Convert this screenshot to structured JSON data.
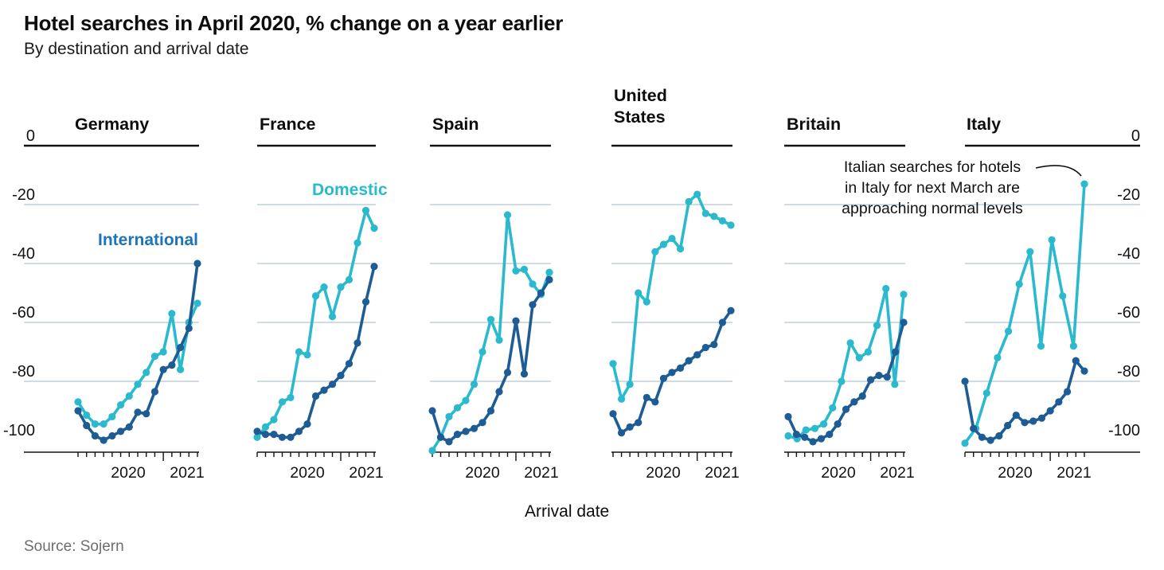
{
  "chart_data": {
    "type": "line",
    "title": "Hotel searches in April 2020, % change on a year earlier",
    "subtitle": "By destination and arrival date",
    "xlabel": "Arrival date",
    "source": "Source: Sojern",
    "legend_position": "inline-labels",
    "grid": "horizontal-only",
    "y_axis": {
      "tick_labels": [
        "0",
        "-20",
        "-40",
        "-60",
        "-80",
        "-100"
      ],
      "tick_values": [
        0,
        -20,
        -40,
        -60,
        -80,
        -100
      ],
      "ylim": [
        -104,
        0
      ],
      "shown_on": "left-and-right"
    },
    "x_axis": {
      "year_labels": [
        "2020",
        "2021"
      ],
      "note": "monthly arrival-date ticks from mid-2020 into 2021"
    },
    "series_labels": {
      "domestic": "Domestic",
      "international": "International"
    },
    "colors": {
      "domestic": "#2bbacd",
      "international": "#1d5c94",
      "international_label": "#1f74b8",
      "gridline": "#c0cfd8",
      "axis": "#121212"
    },
    "annotation": {
      "lines": [
        "Italian searches for hotels",
        "in Italy for next March are",
        "approaching normal levels"
      ],
      "points_to": "final Italy domestic value"
    },
    "panels": [
      {
        "name": "Germany",
        "domestic": [
          -87,
          -91.5,
          -94.5,
          -94.5,
          -92,
          -88,
          -85,
          -81,
          -77,
          -71.5,
          -70,
          -57,
          -76,
          -60,
          -53.5
        ],
        "international": [
          -90,
          -95,
          -98.5,
          -100,
          -98.5,
          -97,
          -95.5,
          -90.5,
          -91,
          -83.5,
          -76,
          -74.5,
          -68.5,
          -62,
          -40
        ]
      },
      {
        "name": "France",
        "domestic": [
          -99,
          -95.5,
          -93,
          -87,
          -85.5,
          -70,
          -71,
          -51,
          -48,
          -58,
          -48,
          -45.5,
          -33,
          -22,
          -28
        ],
        "international": [
          -97,
          -98,
          -98,
          -99,
          -99,
          -97,
          -94.5,
          -85,
          -83,
          -81,
          -78,
          -74,
          -67,
          -53,
          -41
        ]
      },
      {
        "name": "Spain",
        "domestic": [
          -103.5,
          -99,
          -92,
          -89,
          -86.5,
          -81,
          -70,
          -59,
          -66,
          -23.5,
          -42.5,
          -42,
          -47,
          -50.5,
          -43
        ],
        "international": [
          -90,
          -99,
          -100.5,
          -98,
          -97,
          -96,
          -94,
          -90,
          -83.5,
          -77,
          -59.5,
          -77.5,
          -54,
          -50,
          -45.5
        ]
      },
      {
        "name": "United States",
        "domestic": [
          -74,
          -86,
          -81,
          -50,
          -53,
          -36,
          -33.5,
          -31.5,
          -35,
          -19,
          -16.5,
          -23,
          -24,
          -25.5,
          -27
        ],
        "international": [
          -91,
          -97.5,
          -95.5,
          -94,
          -85.5,
          -87,
          -79,
          -77,
          -75.5,
          -73,
          -71,
          -68.5,
          -67.5,
          -60,
          -56
        ]
      },
      {
        "name": "Britain",
        "domestic": [
          -98.5,
          -99.5,
          -96.5,
          -96,
          -94.5,
          -89,
          -80,
          -67,
          -72,
          -70,
          -61,
          -48.5,
          -81,
          -50.5
        ],
        "international": [
          -92,
          -98,
          -99,
          -100.5,
          -99.5,
          -98,
          -94.5,
          -89.5,
          -87,
          -85,
          -79.5,
          -78,
          -78.5,
          -70,
          -60
        ]
      },
      {
        "name": "Italy",
        "domestic": [
          -101,
          -96,
          -84,
          -72,
          -63,
          -47,
          -36,
          -68,
          -32,
          -51,
          -68,
          -13
        ],
        "international": [
          -80,
          -96,
          -99,
          -100,
          -98.5,
          -95,
          -91.5,
          -94,
          -93.5,
          -92.5,
          -90,
          -87,
          -83.5,
          -73,
          -76.5
        ]
      }
    ]
  }
}
